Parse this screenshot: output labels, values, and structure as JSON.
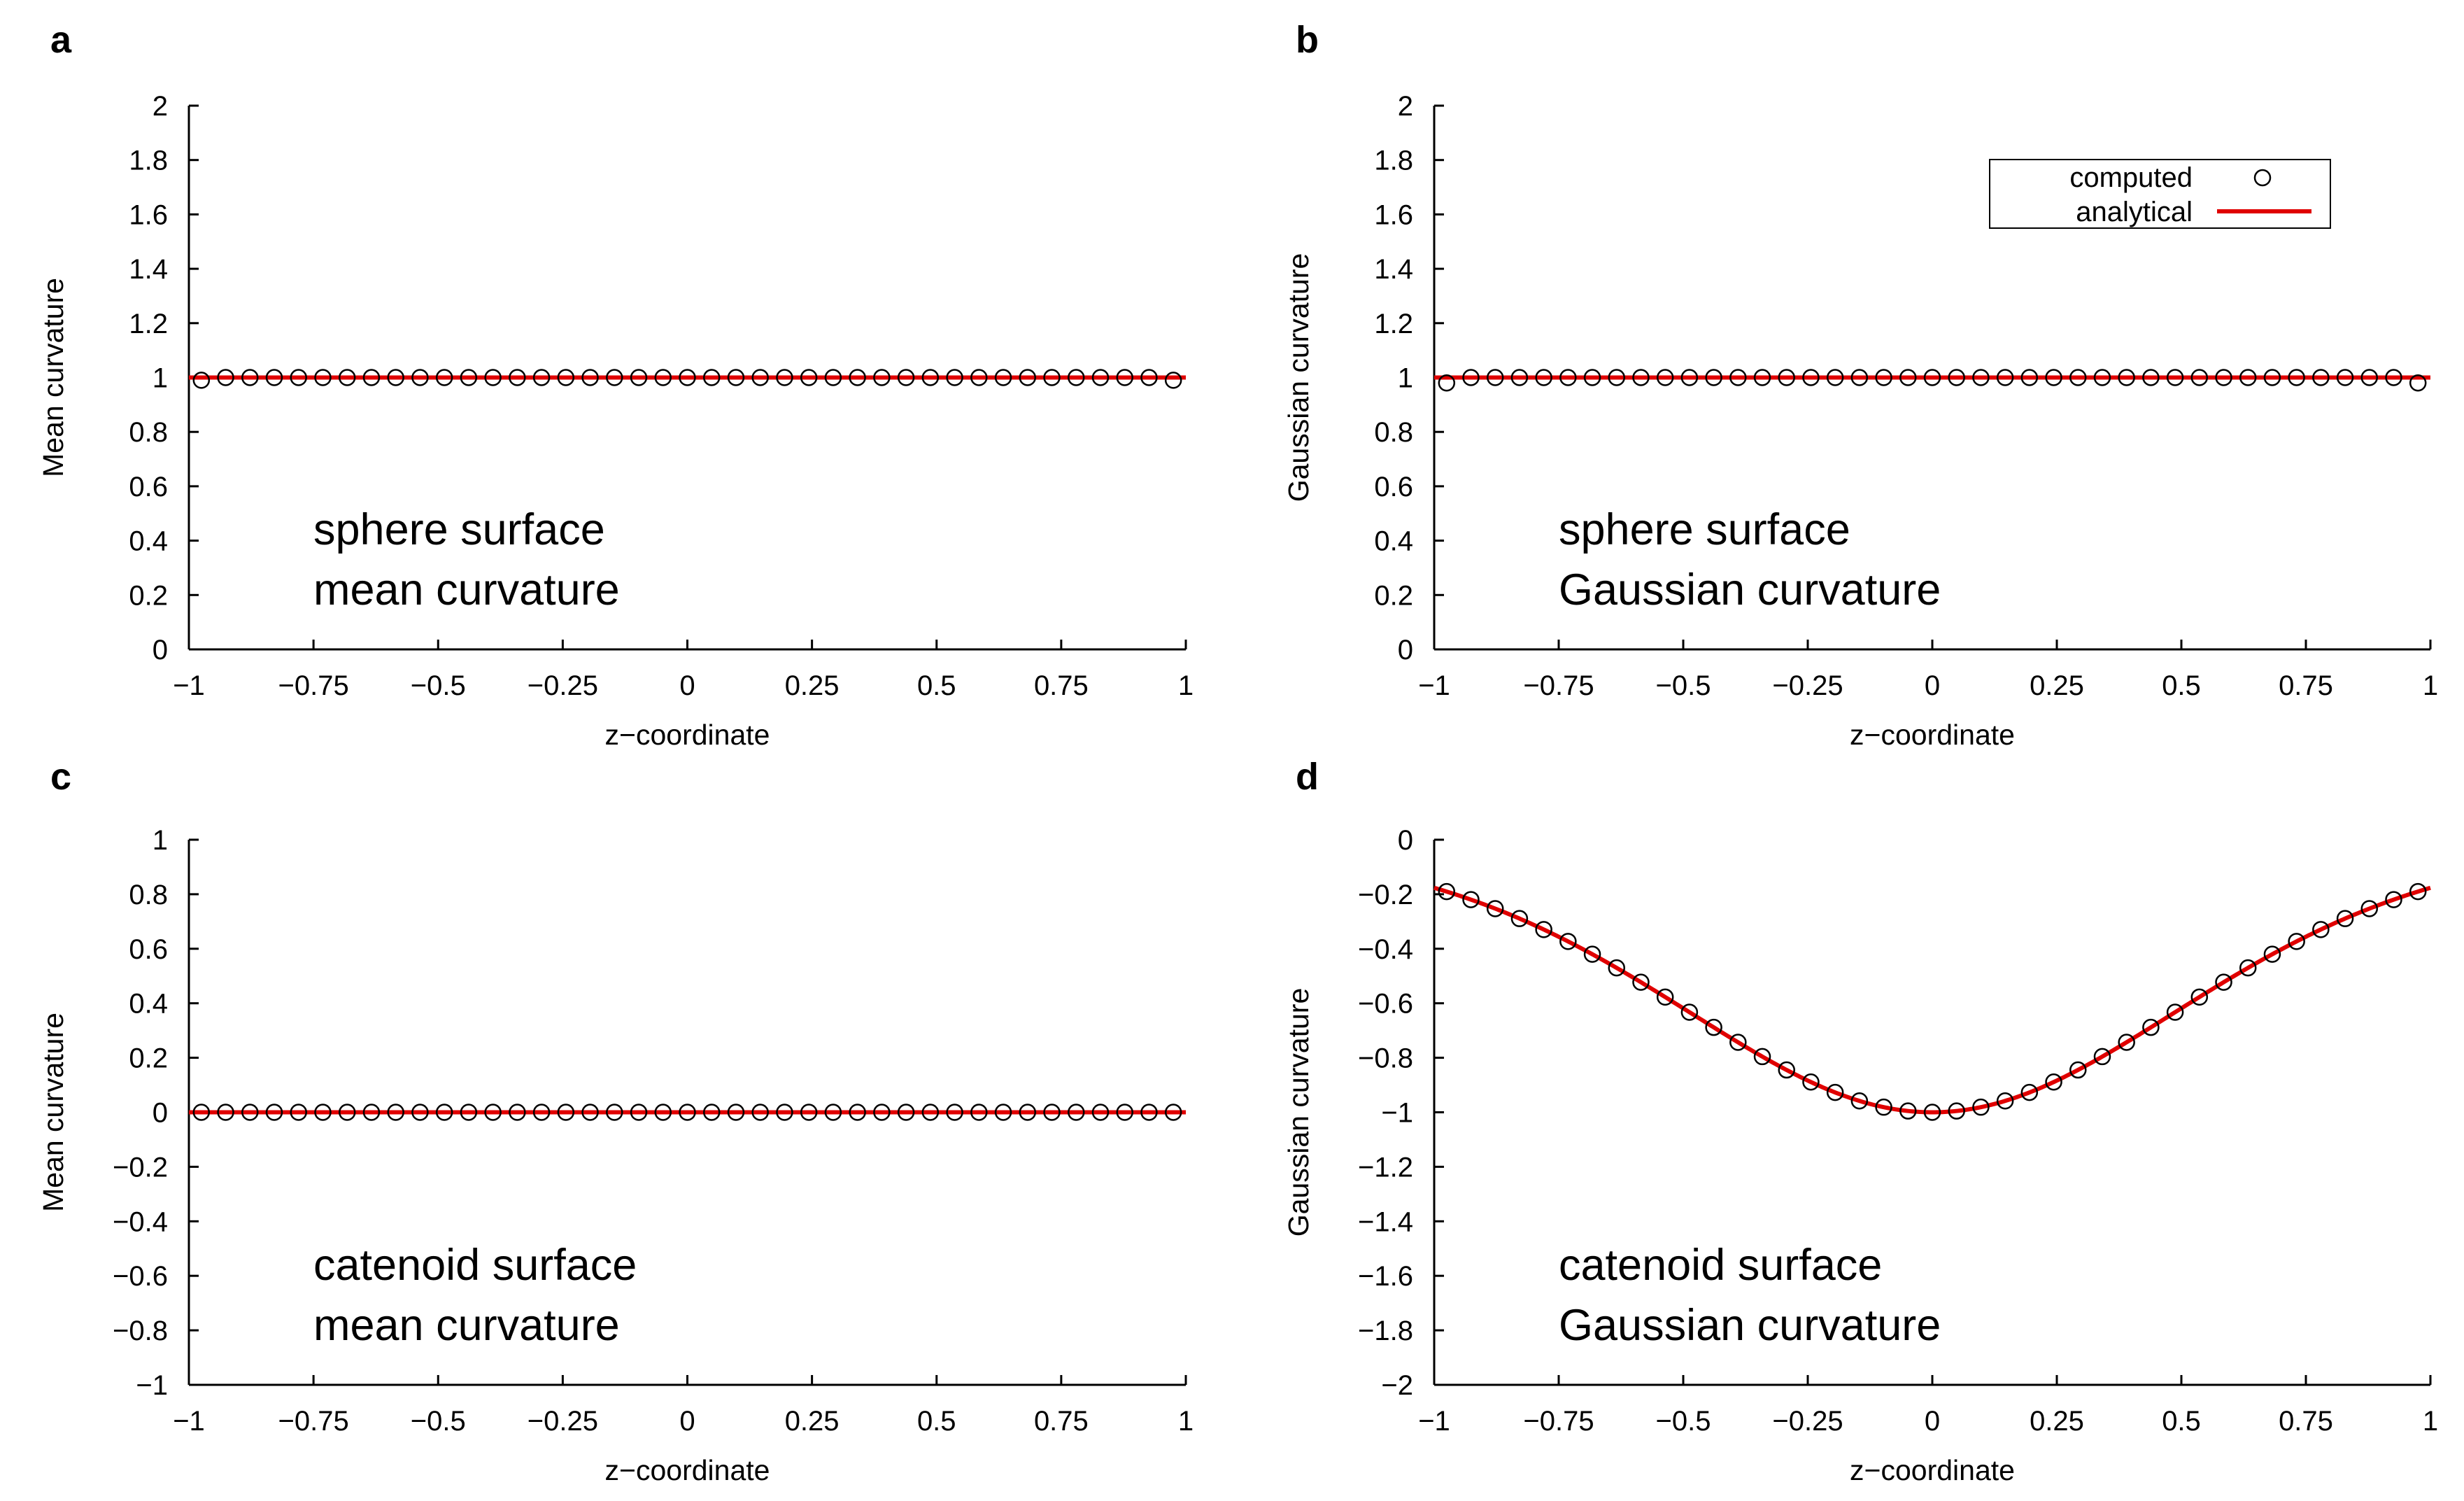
{
  "colors": {
    "analytical": "#e00000",
    "computed": "#000000",
    "axis": "#000000"
  },
  "legend": {
    "computed_label": "computed",
    "analytical_label": "analytical"
  },
  "chart_data": [
    {
      "id": "a",
      "panel_letter": "a",
      "type": "line",
      "xlabel": "z−coordinate",
      "ylabel": "Mean curvature",
      "xlim": [
        -1,
        1
      ],
      "ylim": [
        0,
        2
      ],
      "xticks": [
        -1,
        -0.75,
        -0.5,
        -0.25,
        0,
        0.25,
        0.5,
        0.75,
        1
      ],
      "xtick_labels": [
        "−1",
        "−0.75",
        "−0.5",
        "−0.25",
        "0",
        "0.25",
        "0.5",
        "0.75",
        "1"
      ],
      "yticks": [
        0,
        0.2,
        0.4,
        0.6,
        0.8,
        1,
        1.2,
        1.4,
        1.6,
        1.8,
        2
      ],
      "ytick_labels": [
        "0",
        "0.2",
        "0.4",
        "0.6",
        "0.8",
        "1",
        "1.2",
        "1.4",
        "1.6",
        "1.8",
        "2"
      ],
      "annotation": [
        "sphere surface",
        "mean curvature"
      ],
      "legend_shown": false,
      "analytical": {
        "name": "analytical",
        "kind": "constant",
        "value": 1
      },
      "computed": {
        "name": "computed",
        "kind": "constant",
        "value": 1,
        "edge_value": 0.99,
        "n_points": 41
      }
    },
    {
      "id": "b",
      "panel_letter": "b",
      "type": "line",
      "xlabel": "z−coordinate",
      "ylabel": "Gaussian curvature",
      "xlim": [
        -1,
        1
      ],
      "ylim": [
        0,
        2
      ],
      "xticks": [
        -1,
        -0.75,
        -0.5,
        -0.25,
        0,
        0.25,
        0.5,
        0.75,
        1
      ],
      "xtick_labels": [
        "−1",
        "−0.75",
        "−0.5",
        "−0.25",
        "0",
        "0.25",
        "0.5",
        "0.75",
        "1"
      ],
      "yticks": [
        0,
        0.2,
        0.4,
        0.6,
        0.8,
        1,
        1.2,
        1.4,
        1.6,
        1.8,
        2
      ],
      "ytick_labels": [
        "0",
        "0.2",
        "0.4",
        "0.6",
        "0.8",
        "1",
        "1.2",
        "1.4",
        "1.6",
        "1.8",
        "2"
      ],
      "annotation": [
        "sphere surface",
        "Gaussian curvature"
      ],
      "legend_shown": true,
      "legend_position": "top-right",
      "analytical": {
        "name": "analytical",
        "kind": "constant",
        "value": 1
      },
      "computed": {
        "name": "computed",
        "kind": "constant",
        "value": 1,
        "edge_value": 0.98,
        "n_points": 41
      }
    },
    {
      "id": "c",
      "panel_letter": "c",
      "type": "line",
      "xlabel": "z−coordinate",
      "ylabel": "Mean curvature",
      "xlim": [
        -1,
        1
      ],
      "ylim": [
        -1,
        1
      ],
      "xticks": [
        -1,
        -0.75,
        -0.5,
        -0.25,
        0,
        0.25,
        0.5,
        0.75,
        1
      ],
      "xtick_labels": [
        "−1",
        "−0.75",
        "−0.5",
        "−0.25",
        "0",
        "0.25",
        "0.5",
        "0.75",
        "1"
      ],
      "yticks": [
        -1,
        -0.8,
        -0.6,
        -0.4,
        -0.2,
        0,
        0.2,
        0.4,
        0.6,
        0.8,
        1
      ],
      "ytick_labels": [
        "−1",
        "−0.8",
        "−0.6",
        "−0.4",
        "−0.2",
        "0",
        "0.2",
        "0.4",
        "0.6",
        "0.8",
        "1"
      ],
      "annotation": [
        "catenoid surface",
        "mean curvature"
      ],
      "legend_shown": false,
      "analytical": {
        "name": "analytical",
        "kind": "constant",
        "value": 0
      },
      "computed": {
        "name": "computed",
        "kind": "constant",
        "value": 0,
        "edge_value": 0,
        "n_points": 41
      }
    },
    {
      "id": "d",
      "panel_letter": "d",
      "type": "line",
      "xlabel": "z−coordinate",
      "ylabel": "Gaussian curvature",
      "xlim": [
        -1,
        1
      ],
      "ylim": [
        -2,
        0
      ],
      "xticks": [
        -1,
        -0.75,
        -0.5,
        -0.25,
        0,
        0.25,
        0.5,
        0.75,
        1
      ],
      "xtick_labels": [
        "−1",
        "−0.75",
        "−0.5",
        "−0.25",
        "0",
        "0.25",
        "0.5",
        "0.75",
        "1"
      ],
      "yticks": [
        -2,
        -1.8,
        -1.6,
        -1.4,
        -1.2,
        -1,
        -0.8,
        -0.6,
        -0.4,
        -0.2,
        0
      ],
      "ytick_labels": [
        "−2",
        "−1.8",
        "−1.6",
        "−1.4",
        "−1.2",
        "−1",
        "−0.8",
        "−0.6",
        "−0.4",
        "−0.2",
        "0"
      ],
      "annotation": [
        "catenoid surface",
        "Gaussian curvature"
      ],
      "legend_shown": false,
      "analytical": {
        "name": "analytical",
        "kind": "catenoid_gaussian",
        "formula": "-1/cosh(z)^4"
      },
      "computed": {
        "name": "computed",
        "kind": "catenoid_gaussian",
        "n_points": 41
      }
    }
  ]
}
